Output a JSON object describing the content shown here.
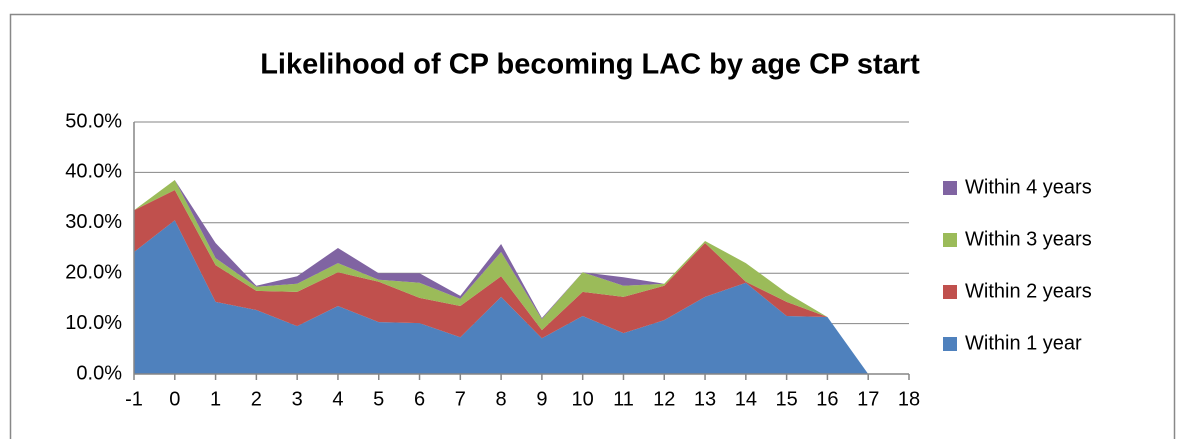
{
  "chart_data": {
    "type": "stacked_area",
    "title": "Likelihood of CP becoming LAC by age CP start",
    "categories": [
      "-1",
      "0",
      "1",
      "2",
      "3",
      "4",
      "5",
      "6",
      "7",
      "8",
      "9",
      "10",
      "11",
      "12",
      "13",
      "14",
      "15",
      "16",
      "17",
      "18"
    ],
    "series": [
      {
        "name": "Within 1 year",
        "color": "#4f81bd",
        "values": [
          24.2,
          30.5,
          14.3,
          12.7,
          9.5,
          13.5,
          10.3,
          10.1,
          7.3,
          15.3,
          7.1,
          11.5,
          8.1,
          10.7,
          15.3,
          18.1,
          11.5,
          11.3,
          0,
          null
        ]
      },
      {
        "name": "Within 2 years",
        "color": "#c0504d",
        "values": [
          8.3,
          6.0,
          7.3,
          3.8,
          6.8,
          6.7,
          8.0,
          5.0,
          6.2,
          4.1,
          1.6,
          4.8,
          7.2,
          6.8,
          10.7,
          0.2,
          2.8,
          0,
          0,
          null
        ]
      },
      {
        "name": "Within 3 years",
        "color": "#9bbb59",
        "values": [
          0,
          2.0,
          1.4,
          0.8,
          1.6,
          1.8,
          0.4,
          3.0,
          1.4,
          4.8,
          2.2,
          3.9,
          2.2,
          0.4,
          0.4,
          3.7,
          1.8,
          0,
          0,
          null
        ]
      },
      {
        "name": "Within 4 years",
        "color": "#8064a2",
        "values": [
          0,
          0,
          3.0,
          0.2,
          1.5,
          3.0,
          1.3,
          1.9,
          0.6,
          1.6,
          0.2,
          0,
          1.7,
          0,
          0,
          0,
          0,
          0,
          0,
          null
        ]
      }
    ],
    "ylim": [
      0,
      50
    ],
    "yticks": [
      {
        "value": 0,
        "label": "0.0%"
      },
      {
        "value": 10,
        "label": "10.0%"
      },
      {
        "value": 20,
        "label": "20.0%"
      },
      {
        "value": 30,
        "label": "30.0%"
      },
      {
        "value": 40,
        "label": "40.0%"
      },
      {
        "value": 50,
        "label": "50.0%"
      }
    ],
    "grid": true,
    "legend": "right"
  }
}
